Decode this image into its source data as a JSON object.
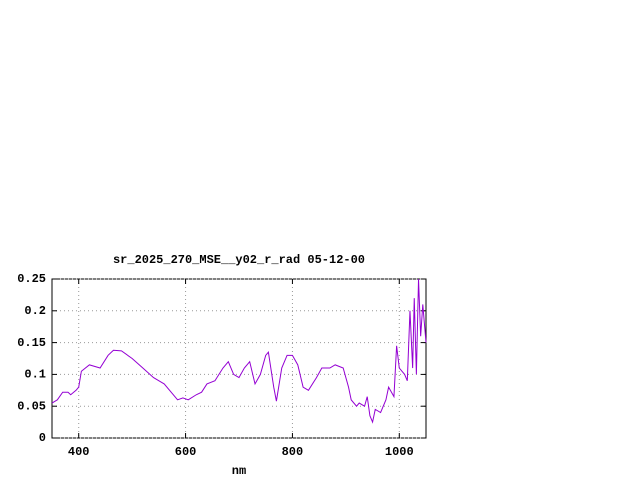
{
  "chart_data": {
    "type": "line",
    "title": "sr_2025_270_MSE__y02_r_rad 05-12-00",
    "x_label": "nm",
    "x": [
      350,
      360,
      370,
      380,
      385,
      395,
      400,
      405,
      420,
      440,
      455,
      465,
      480,
      500,
      520,
      540,
      560,
      575,
      585,
      595,
      605,
      620,
      630,
      640,
      655,
      670,
      680,
      690,
      700,
      710,
      720,
      730,
      740,
      750,
      755,
      765,
      770,
      780,
      790,
      800,
      810,
      820,
      830,
      845,
      855,
      870,
      880,
      895,
      905,
      910,
      920,
      925,
      935,
      940,
      945,
      950,
      955,
      965,
      975,
      980,
      990,
      995,
      1000,
      1010,
      1015,
      1020,
      1025,
      1028,
      1032,
      1036,
      1040,
      1044,
      1048,
      1050
    ],
    "series": [
      {
        "color": "#9400d3",
        "values": [
          0.055,
          0.06,
          0.072,
          0.072,
          0.068,
          0.075,
          0.08,
          0.105,
          0.115,
          0.11,
          0.13,
          0.138,
          0.137,
          0.125,
          0.11,
          0.095,
          0.085,
          0.07,
          0.06,
          0.063,
          0.06,
          0.068,
          0.072,
          0.085,
          0.09,
          0.11,
          0.12,
          0.1,
          0.095,
          0.11,
          0.12,
          0.085,
          0.1,
          0.13,
          0.135,
          0.08,
          0.058,
          0.11,
          0.13,
          0.13,
          0.115,
          0.08,
          0.075,
          0.095,
          0.11,
          0.11,
          0.115,
          0.11,
          0.08,
          0.06,
          0.05,
          0.055,
          0.05,
          0.065,
          0.035,
          0.025,
          0.045,
          0.04,
          0.06,
          0.08,
          0.065,
          0.145,
          0.11,
          0.1,
          0.09,
          0.2,
          0.11,
          0.22,
          0.1,
          0.25,
          0.16,
          0.21,
          0.17,
          0.15
        ]
      }
    ],
    "xlim": [
      350,
      1050
    ],
    "ylim": [
      0,
      0.25
    ],
    "xticks": [
      400,
      600,
      800,
      1000
    ],
    "yticks": [
      0,
      0.05,
      0.1,
      0.15,
      0.2,
      0.25
    ],
    "grid": true
  }
}
